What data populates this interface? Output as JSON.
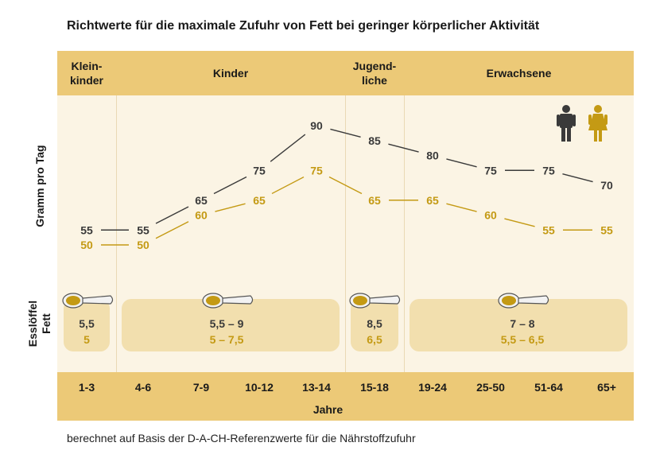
{
  "title": "Richtwerte für die maximale Zufuhr von Fett bei geringer körperlicher Aktivität",
  "footer_note": "berechnet auf Basis der D-A-CH-Referenzwerte für die Nährstoffzufuhr",
  "groups": [
    {
      "label": "Klein-\nkinder"
    },
    {
      "label": "Kinder"
    },
    {
      "label": "Jugend-\nliche"
    },
    {
      "label": "Erwachsene"
    }
  ],
  "colors": {
    "male": "#3a3a3a",
    "female": "#c49a14",
    "band": "#ecc977",
    "panel": "#fbf4e4",
    "spoon_box": "#f2dfae"
  },
  "icons": {
    "male": "man-icon",
    "female": "woman-icon",
    "spoon": "spoon-icon"
  },
  "chart_data": {
    "type": "line",
    "title": "Richtwerte für die maximale Zufuhr von Fett bei geringer körperlicher Aktivität",
    "xlabel": "Jahre",
    "ylabel": "Gramm pro Tag",
    "categories": [
      "1-3",
      "4-6",
      "7-9",
      "10-12",
      "13-14",
      "15-18",
      "19-24",
      "25-50",
      "51-64",
      "65+"
    ],
    "series": [
      {
        "values": [
          55,
          55,
          65,
          75,
          90,
          85,
          80,
          75,
          75,
          70
        ],
        "color": "#3a3a3a"
      },
      {
        "values": [
          50,
          50,
          60,
          65,
          75,
          65,
          65,
          60,
          55,
          55
        ],
        "color": "#c49a14"
      }
    ],
    "ylim": [
      45,
      95
    ],
    "grid": false,
    "legend": "top-right"
  },
  "spoons": {
    "ylabel": "Esslöffel\nFett",
    "groups": [
      {
        "male": "5,5",
        "female": "5"
      },
      {
        "male": "5,5 – 9",
        "female": "5 – 7,5"
      },
      {
        "male": "8,5",
        "female": "6,5"
      },
      {
        "male": "7 – 8",
        "female": "5,5 – 6,5"
      }
    ]
  }
}
